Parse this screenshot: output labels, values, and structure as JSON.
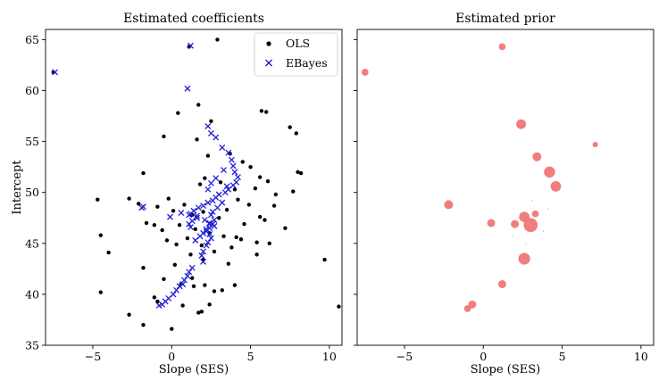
{
  "chart_data": [
    {
      "type": "scatter",
      "title": "Estimated coefficients",
      "xlabel": "Slope (SES)",
      "ylabel": "Intercept",
      "xlim": [
        -8.0,
        10.8
      ],
      "ylim": [
        35.0,
        66.0
      ],
      "xticks": [
        -5,
        0,
        5,
        10
      ],
      "xtick_labels": [
        "−5",
        "0",
        "5",
        "10"
      ],
      "yticks": [
        35,
        40,
        45,
        50,
        55,
        60,
        65
      ],
      "ytick_labels": [
        "35",
        "40",
        "45",
        "50",
        "55",
        "60",
        "65"
      ],
      "grid": false,
      "legend_position": "top-right",
      "series": [
        {
          "name": "OLS",
          "marker": "dot",
          "color": "#000000",
          "x": [
            -7.5,
            1.1,
            2.9,
            6.0,
            1.7,
            -0.5,
            0.4,
            1.6,
            2.3,
            2.5,
            5.7,
            7.5,
            7.9,
            3.7,
            4.5,
            5.0,
            5.6,
            -1.8,
            8.0,
            8.2,
            3.1,
            1.8,
            2.1,
            4.0,
            5.3,
            6.1,
            6.6,
            7.7,
            -4.7,
            -2.7,
            -2.1,
            -0.2,
            -0.9,
            0.1,
            0.8,
            1.3,
            2.0,
            3.5,
            4.2,
            4.9,
            5.6,
            5.9,
            6.5,
            -1.6,
            -1.1,
            -0.6,
            0.5,
            1.5,
            2.4,
            3.0,
            3.3,
            4.1,
            4.6,
            5.4,
            7.2,
            -0.3,
            0.3,
            1.0,
            1.9,
            2.7,
            3.8,
            4.4,
            6.2,
            -4.5,
            -4.0,
            -1.8,
            0.2,
            1.2,
            2.0,
            3.6,
            5.4,
            9.7,
            -0.5,
            0.6,
            1.4,
            2.1,
            2.7,
            3.2,
            4.0,
            -4.5,
            -1.1,
            -0.9,
            0.7,
            1.9,
            2.4,
            -2.7,
            -1.8,
            1.7,
            10.6,
            0.0,
            1.3
          ],
          "y": [
            61.8,
            64.3,
            65.0,
            57.9,
            58.6,
            55.5,
            57.8,
            55.2,
            53.6,
            57.0,
            58.0,
            56.4,
            55.8,
            53.8,
            53.0,
            52.5,
            51.5,
            51.9,
            52.0,
            51.9,
            51.0,
            50.8,
            51.4,
            50.3,
            50.4,
            51.1,
            49.8,
            50.1,
            49.3,
            49.4,
            48.9,
            49.4,
            48.6,
            48.2,
            48.8,
            47.8,
            48.1,
            48.3,
            49.3,
            48.8,
            47.6,
            47.3,
            48.7,
            47.0,
            46.8,
            46.3,
            46.8,
            46.4,
            46.0,
            47.5,
            45.7,
            45.6,
            46.9,
            45.1,
            46.5,
            45.3,
            44.9,
            45.5,
            44.8,
            44.2,
            44.6,
            45.4,
            45.0,
            45.8,
            44.1,
            42.6,
            42.9,
            43.9,
            43.4,
            43.0,
            43.9,
            43.4,
            41.5,
            41.0,
            40.8,
            40.9,
            40.3,
            40.4,
            40.9,
            40.2,
            39.7,
            39.3,
            38.9,
            38.3,
            39.0,
            38.0,
            37.0,
            38.2,
            38.8,
            36.6,
            41.6
          ]
        },
        {
          "name": "EBayes",
          "marker": "x",
          "color": "#1f1fd6",
          "x": [
            -7.4,
            1.2,
            1.0,
            2.3,
            2.5,
            2.8,
            3.2,
            3.6,
            3.8,
            3.9,
            4.0,
            4.2,
            4.1,
            3.9,
            3.6,
            3.4,
            3.0,
            2.8,
            2.6,
            2.3,
            2.0,
            1.7,
            1.4,
            1.1,
            1.6,
            2.1,
            2.4,
            2.6,
            2.7,
            2.4,
            2.2,
            2.0,
            1.8,
            2.6,
            2.9,
            3.2,
            3.5,
            3.3,
            2.8,
            2.5,
            2.3,
            2.5,
            2.7,
            2.4,
            2.2,
            2.4,
            2.5,
            2.3,
            2.2,
            2.0,
            1.9,
            1.5,
            2.0,
            1.3,
            1.1,
            1.0,
            0.8,
            0.7,
            1.3,
            1.1,
            1.2,
            0.5,
            0.3,
            0.1,
            -0.2,
            -0.4,
            -0.6,
            -0.8,
            -1.8,
            -1.9,
            -0.1,
            0.6,
            1.2,
            1.6
          ],
          "y": [
            61.8,
            64.4,
            60.2,
            56.5,
            55.8,
            55.4,
            54.4,
            53.9,
            53.2,
            52.6,
            52.0,
            51.5,
            51.0,
            50.7,
            50.3,
            50.0,
            49.8,
            49.5,
            49.2,
            49.0,
            48.7,
            48.5,
            48.2,
            47.8,
            47.5,
            47.3,
            47.0,
            46.9,
            46.7,
            46.5,
            46.2,
            46.0,
            45.7,
            48.1,
            48.5,
            49.0,
            50.6,
            52.2,
            51.4,
            50.9,
            50.3,
            47.8,
            47.3,
            46.9,
            46.4,
            45.9,
            45.5,
            45.1,
            44.8,
            44.2,
            43.8,
            45.3,
            43.2,
            42.6,
            42.2,
            41.8,
            41.4,
            41.0,
            47.2,
            46.9,
            46.6,
            40.8,
            40.4,
            40.0,
            39.6,
            39.3,
            39.0,
            38.9,
            48.6,
            48.5,
            47.6,
            48.0,
            47.9,
            47.7
          ]
        }
      ]
    },
    {
      "type": "scatter",
      "title": "Estimated prior",
      "xlabel": "Slope (SES)",
      "xlim": [
        -8.0,
        10.8
      ],
      "ylim": [
        35.0,
        66.0
      ],
      "xticks": [
        -5,
        0,
        5,
        10
      ],
      "xtick_labels": [
        "−5",
        "0",
        "5",
        "10"
      ],
      "grid": false,
      "marker_color": "#f07373",
      "points": {
        "x": [
          -7.5,
          1.2,
          2.4,
          7.1,
          3.4,
          4.2,
          4.6,
          -2.2,
          0.5,
          2.6,
          2.0,
          3.0,
          3.3,
          2.6,
          1.2,
          -0.7,
          -1.0,
          3.8,
          4.1,
          1.9,
          2.7,
          3.1
        ],
        "y": [
          61.8,
          64.3,
          56.7,
          54.7,
          53.5,
          52.0,
          50.6,
          48.8,
          47.0,
          47.6,
          46.9,
          46.8,
          47.9,
          43.5,
          41.0,
          39.0,
          38.6,
          46.2,
          48.4,
          45.7,
          44.9,
          49.2
        ],
        "weights": [
          2,
          2,
          5,
          1,
          4,
          7,
          6,
          4,
          3,
          6,
          3,
          12,
          2,
          8,
          3,
          3,
          2,
          0.5,
          0.5,
          0.5,
          0.5,
          0.5
        ]
      }
    }
  ]
}
